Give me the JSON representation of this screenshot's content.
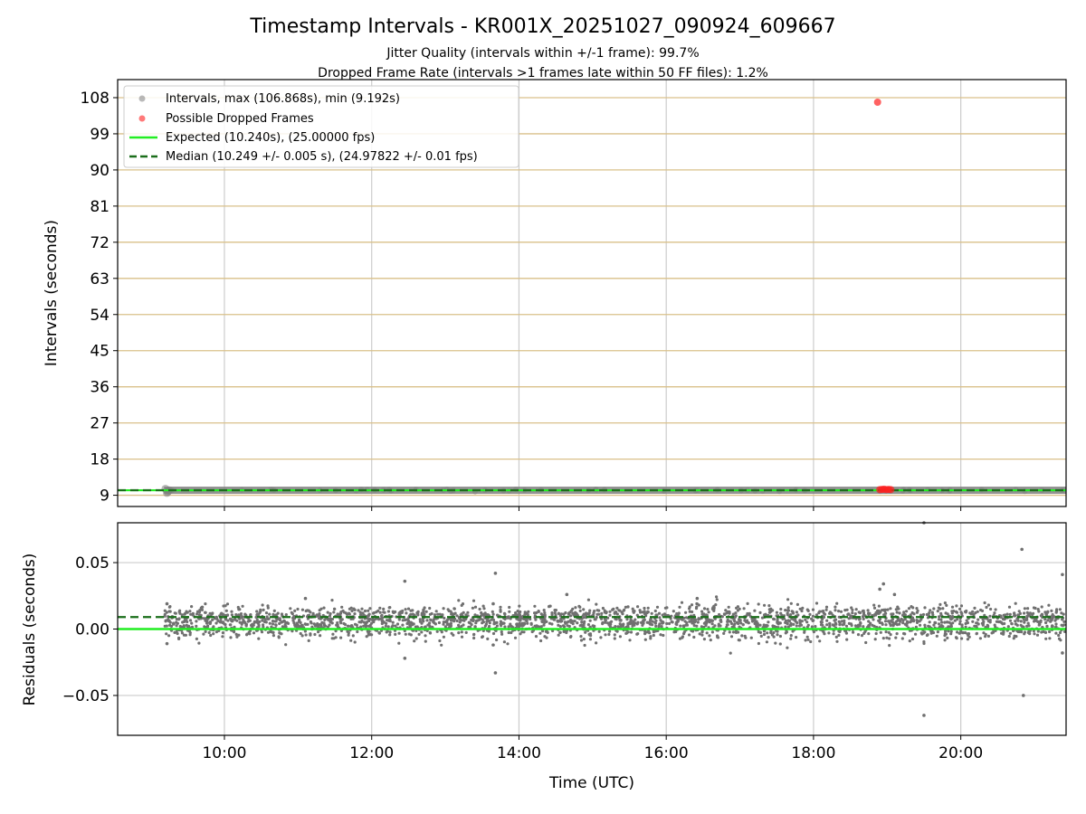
{
  "title": "Timestamp Intervals - KR001X_20251027_090924_609667",
  "subtitle_1": "Jitter Quality (intervals within +/-1 frame): 99.7%",
  "subtitle_2": "Dropped Frame Rate (intervals >1 frames late within 50 FF files): 1.2%",
  "colors": {
    "intervals": "#808080",
    "dropped": "#ff2020",
    "expected": "#22ee22",
    "median": "#1a6e1a",
    "hgrid_top": "#d9c08a",
    "vgrid": "#cccccc"
  },
  "chart_data": [
    {
      "type": "scatter",
      "panel": "intervals",
      "ylabel": "Intervals (seconds)",
      "xlabel": "",
      "x_unit": "hours UTC",
      "xlim": [
        8.55,
        21.43
      ],
      "ylim": [
        6.2,
        112.5
      ],
      "yticks": [
        9,
        18,
        27,
        36,
        45,
        54,
        63,
        72,
        81,
        90,
        99,
        108
      ],
      "legend_position": "top-left",
      "legend": [
        {
          "key": "intervals",
          "label": "Intervals, max (106.868s), min (9.192s)"
        },
        {
          "key": "dropped",
          "label": "Possible Dropped Frames"
        },
        {
          "key": "expected",
          "label": "Expected (10.240s), (25.00000 fps)"
        },
        {
          "key": "median",
          "label": "Median (10.249 +/- 0.005 s), (24.97822 +/- 0.01 fps)"
        }
      ],
      "series": [
        {
          "name": "Intervals",
          "x_start": 9.18,
          "x_end": 21.43,
          "y": 10.249,
          "max": 106.868,
          "min": 9.192
        },
        {
          "name": "Possible Dropped Frames",
          "points": [
            [
              18.87,
              106.868
            ],
            [
              18.9,
              10.4
            ],
            [
              18.93,
              10.45
            ],
            [
              18.96,
              10.5
            ],
            [
              18.99,
              10.4
            ],
            [
              19.02,
              10.45
            ],
            [
              19.05,
              10.4
            ]
          ]
        },
        {
          "name": "Expected",
          "y": 10.24,
          "fps": 25.0
        },
        {
          "name": "Median",
          "y": 10.249,
          "fps": 24.97822
        }
      ]
    },
    {
      "type": "scatter",
      "panel": "residuals",
      "ylabel": "Residuals (seconds)",
      "xlabel": "Time (UTC)",
      "xlim": [
        8.55,
        21.43
      ],
      "ylim": [
        -0.08,
        0.08
      ],
      "yticks": [
        0.05,
        0.0,
        -0.05
      ],
      "ytick_labels": [
        "0.05",
        "0.00",
        "−0.05"
      ],
      "xticks": [
        10,
        12,
        14,
        16,
        18,
        20
      ],
      "xtick_labels": [
        "10:00",
        "12:00",
        "14:00",
        "16:00",
        "18:00",
        "20:00"
      ],
      "series": [
        {
          "name": "Residuals",
          "x_start": 9.18,
          "x_end": 21.43,
          "center_main": 0.009,
          "center_low": 0.0,
          "spread": 0.004,
          "outliers": [
            [
              9.22,
              0.019
            ],
            [
              9.22,
              -0.011
            ],
            [
              11.1,
              0.023
            ],
            [
              12.45,
              0.036
            ],
            [
              12.45,
              -0.022
            ],
            [
              13.68,
              0.042
            ],
            [
              13.68,
              -0.033
            ],
            [
              13.65,
              0.019
            ],
            [
              13.65,
              -0.012
            ],
            [
              14.65,
              0.026
            ],
            [
              16.42,
              0.023
            ],
            [
              18.9,
              0.03
            ],
            [
              18.95,
              0.034
            ],
            [
              19.1,
              0.026
            ],
            [
              19.5,
              0.08
            ],
            [
              19.5,
              -0.065
            ],
            [
              20.83,
              0.06
            ],
            [
              20.85,
              -0.05
            ],
            [
              21.38,
              0.041
            ],
            [
              21.38,
              -0.018
            ]
          ]
        },
        {
          "name": "Expected",
          "y": 0.0
        },
        {
          "name": "Median",
          "y": 0.009
        }
      ]
    }
  ]
}
